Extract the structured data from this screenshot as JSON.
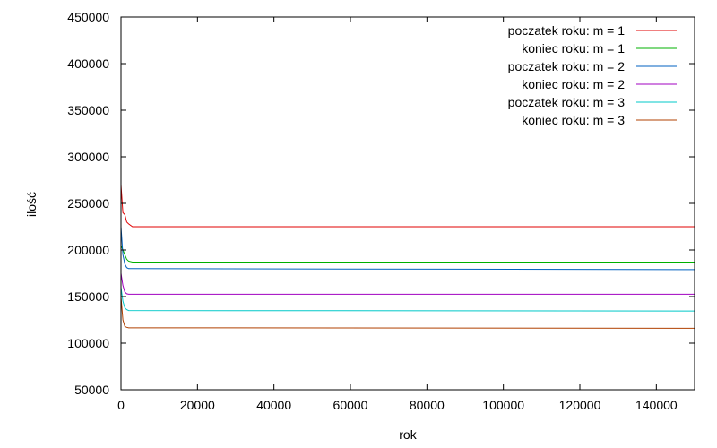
{
  "chart_data": {
    "type": "line",
    "title": "",
    "xlabel": "rok",
    "ylabel": "ilość",
    "xlim": [
      0,
      150000
    ],
    "ylim": [
      50000,
      450000
    ],
    "x_ticks": [
      0,
      20000,
      40000,
      60000,
      80000,
      100000,
      120000,
      140000
    ],
    "y_ticks": [
      50000,
      100000,
      150000,
      200000,
      250000,
      300000,
      350000,
      400000,
      450000
    ],
    "grid": false,
    "legend_position": "top-right",
    "series": [
      {
        "name": "poczatek roku: m = 1",
        "color": "#e00000",
        "points": [
          [
            0,
            270000
          ],
          [
            500,
            240000
          ],
          [
            1000,
            238000
          ],
          [
            1500,
            230000
          ],
          [
            2000,
            228000
          ],
          [
            3000,
            225000
          ],
          [
            150000,
            225000
          ]
        ]
      },
      {
        "name": "koniec roku: m = 1",
        "color": "#00b000",
        "points": [
          [
            0,
            205000
          ],
          [
            500,
            200000
          ],
          [
            1000,
            195000
          ],
          [
            1500,
            190000
          ],
          [
            2000,
            188000
          ],
          [
            3000,
            187000
          ],
          [
            150000,
            187000
          ]
        ]
      },
      {
        "name": "poczatek roku: m = 2",
        "color": "#0060c0",
        "points": [
          [
            0,
            225000
          ],
          [
            500,
            195000
          ],
          [
            1000,
            185000
          ],
          [
            1500,
            181000
          ],
          [
            2000,
            180000
          ],
          [
            150000,
            179000
          ]
        ]
      },
      {
        "name": "koniec roku: m = 2",
        "color": "#a000c0",
        "points": [
          [
            0,
            175000
          ],
          [
            500,
            162000
          ],
          [
            1000,
            155000
          ],
          [
            1500,
            153000
          ],
          [
            2000,
            152500
          ],
          [
            150000,
            152500
          ]
        ]
      },
      {
        "name": "poczatek roku: m = 3",
        "color": "#00c8c8",
        "points": [
          [
            0,
            160000
          ],
          [
            500,
            145000
          ],
          [
            1000,
            138000
          ],
          [
            1500,
            136000
          ],
          [
            2000,
            135000
          ],
          [
            150000,
            134500
          ]
        ]
      },
      {
        "name": "koniec roku: m = 3",
        "color": "#b04000",
        "points": [
          [
            0,
            150000
          ],
          [
            500,
            125000
          ],
          [
            1000,
            118000
          ],
          [
            1500,
            117000
          ],
          [
            2000,
            116500
          ],
          [
            150000,
            116000
          ]
        ]
      }
    ]
  }
}
